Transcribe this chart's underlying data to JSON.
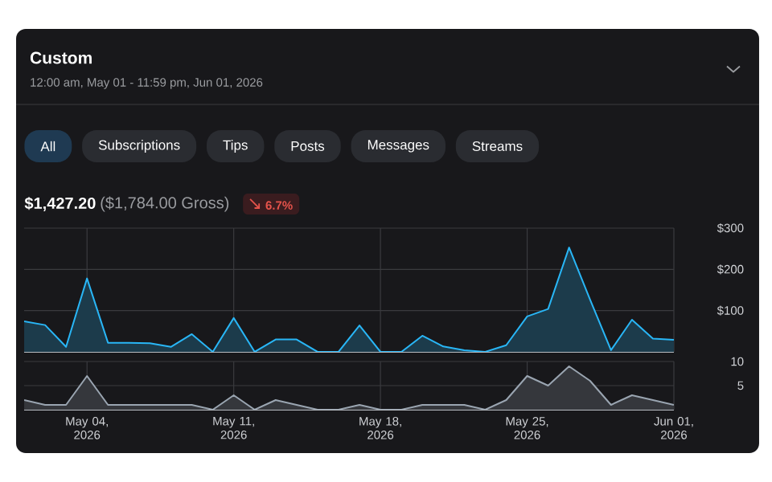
{
  "chart_data": [
    {
      "type": "area",
      "title": "Custom",
      "subtitle": "12:00 am, May 01 - 11:59 pm, Jun 01, 2026",
      "annotations": [
        "All",
        "Subscriptions",
        "Tips",
        "Posts",
        "Messages",
        "Streams",
        "$1,427.20",
        "($1,784.00 Gross)",
        "6.7%"
      ],
      "x": [
        "2026-05-01",
        "2026-05-02",
        "2026-05-03",
        "2026-05-04",
        "2026-05-05",
        "2026-05-06",
        "2026-05-07",
        "2026-05-08",
        "2026-05-09",
        "2026-05-10",
        "2026-05-11",
        "2026-05-12",
        "2026-05-13",
        "2026-05-14",
        "2026-05-15",
        "2026-05-16",
        "2026-05-17",
        "2026-05-18",
        "2026-05-19",
        "2026-05-20",
        "2026-05-21",
        "2026-05-22",
        "2026-05-23",
        "2026-05-24",
        "2026-05-25",
        "2026-05-26",
        "2026-05-27",
        "2026-05-28",
        "2026-05-29",
        "2026-05-30",
        "2026-05-31",
        "2026-06-01"
      ],
      "series": [
        {
          "color": "#29b6f6",
          "values": [
            74,
            65,
            12,
            178,
            22,
            22,
            21,
            12,
            43,
            0,
            82,
            0,
            30,
            30,
            0,
            0,
            64,
            0,
            0,
            39,
            13,
            4,
            0,
            16,
            86,
            104,
            253,
            127,
            4,
            78,
            32,
            29
          ]
        }
      ],
      "xlim": [
        "2026-05-01",
        "2026-06-01"
      ],
      "xticks": [
        {
          "value": "2026-05-04",
          "label": null
        },
        {
          "value": "2026-05-11",
          "label": null
        },
        {
          "value": "2026-05-18",
          "label": null
        },
        {
          "value": "2026-05-25",
          "label": null
        },
        {
          "value": "2026-06-01",
          "label": null
        }
      ],
      "ylim": [
        0,
        300
      ],
      "yticks": [
        {
          "value": 100,
          "label": "$100"
        },
        {
          "value": 200,
          "label": "$200"
        },
        {
          "value": 300,
          "label": "$300"
        }
      ],
      "grid": true,
      "tick_labels": "y"
    },
    {
      "type": "area",
      "x": [
        "2026-05-01",
        "2026-05-02",
        "2026-05-03",
        "2026-05-04",
        "2026-05-05",
        "2026-05-06",
        "2026-05-07",
        "2026-05-08",
        "2026-05-09",
        "2026-05-10",
        "2026-05-11",
        "2026-05-12",
        "2026-05-13",
        "2026-05-14",
        "2026-05-15",
        "2026-05-16",
        "2026-05-17",
        "2026-05-18",
        "2026-05-19",
        "2026-05-20",
        "2026-05-21",
        "2026-05-22",
        "2026-05-23",
        "2026-05-24",
        "2026-05-25",
        "2026-05-26",
        "2026-05-27",
        "2026-05-28",
        "2026-05-29",
        "2026-05-30",
        "2026-05-31",
        "2026-06-01"
      ],
      "series": [
        {
          "color": "#9aa5b1",
          "values": [
            2,
            1,
            1,
            7,
            1,
            1,
            1,
            1,
            1,
            0,
            3,
            0,
            2,
            1,
            0,
            0,
            1,
            0,
            0,
            1,
            1,
            1,
            0,
            2,
            7,
            5,
            9,
            6,
            1,
            3,
            2,
            1
          ]
        }
      ],
      "xlim": [
        "2026-05-01",
        "2026-06-01"
      ],
      "xticks": [
        {
          "value": "2026-05-04",
          "label": "May 04, 2026"
        },
        {
          "value": "2026-05-11",
          "label": "May 11, 2026"
        },
        {
          "value": "2026-05-18",
          "label": "May 18, 2026"
        },
        {
          "value": "2026-05-25",
          "label": "May 25, 2026"
        },
        {
          "value": "2026-06-01",
          "label": "Jun 01, 2026"
        }
      ],
      "ylim": [
        0,
        10
      ],
      "yticks": [
        5,
        10
      ],
      "grid": true
    }
  ]
}
